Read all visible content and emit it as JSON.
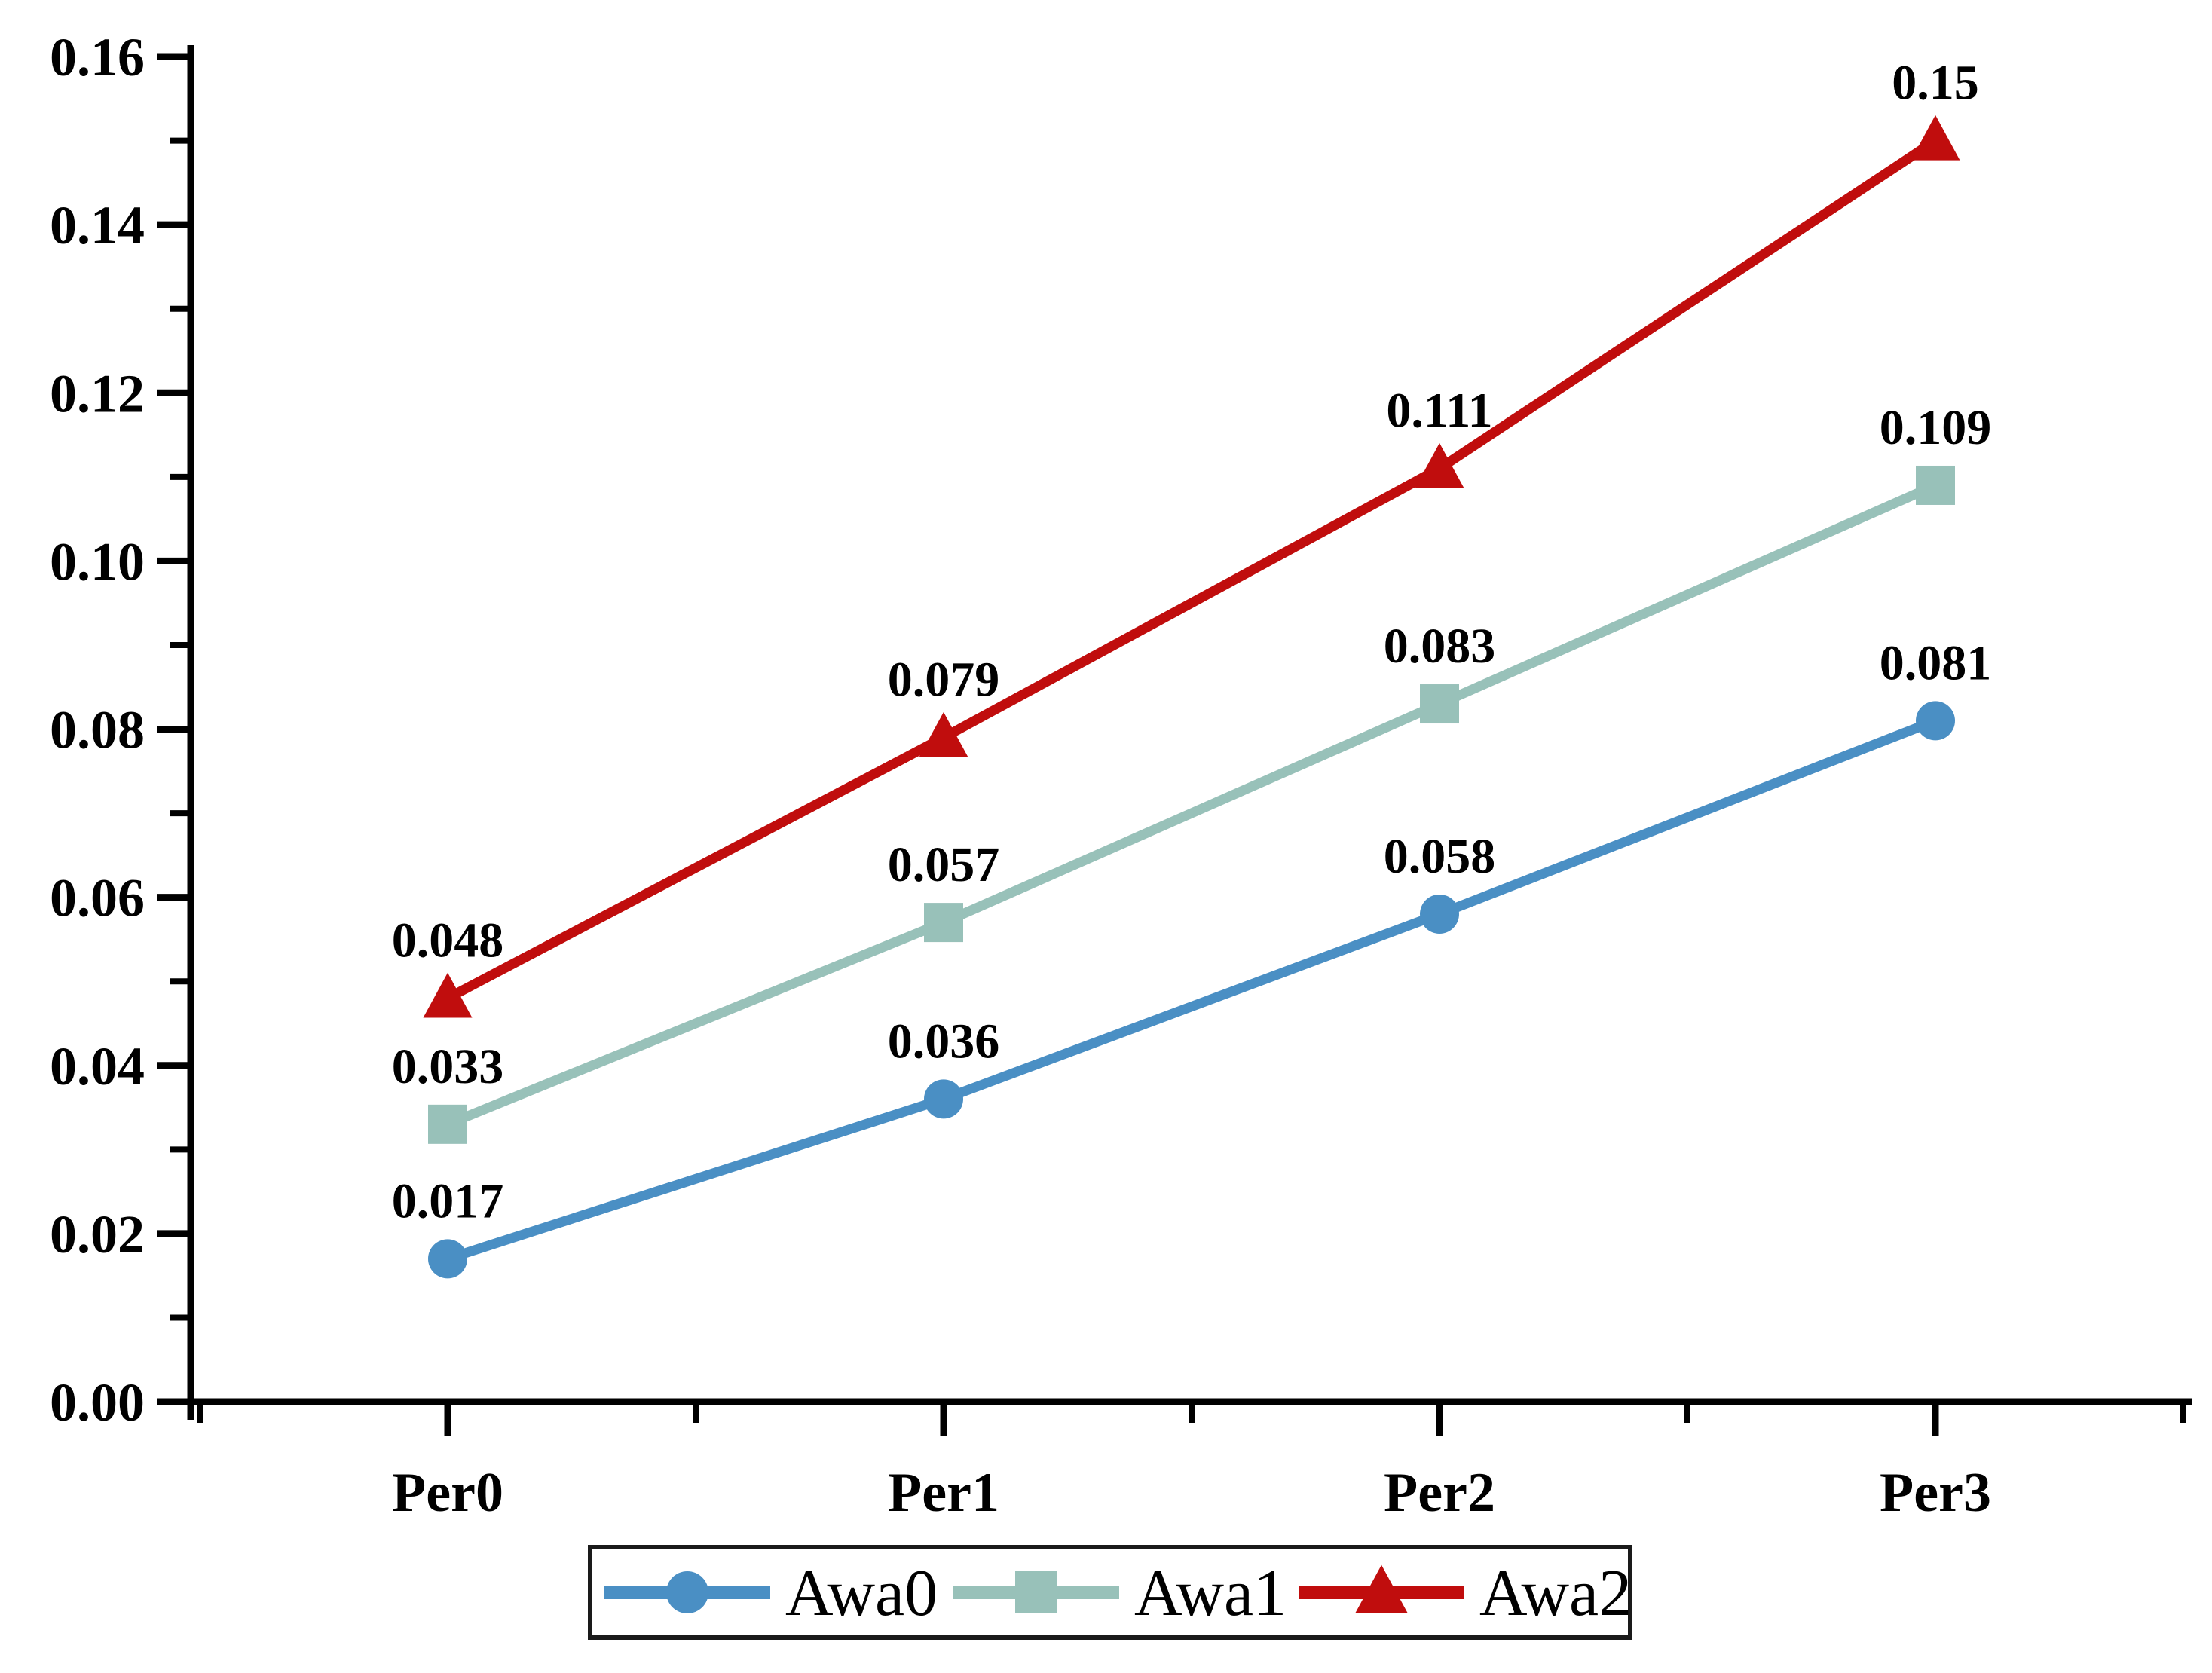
{
  "chart_data": {
    "type": "line",
    "categories": [
      "Per0",
      "Per1",
      "Per2",
      "Per3"
    ],
    "series": [
      {
        "name": "Awa0",
        "marker": "circle",
        "color": "#4a8fc4",
        "values": [
          0.017,
          0.036,
          0.058,
          0.081
        ],
        "point_labels": [
          "0.017",
          "0.036",
          "0.058",
          "0.081"
        ]
      },
      {
        "name": "Awa1",
        "marker": "square",
        "color": "#98c1b9",
        "values": [
          0.033,
          0.057,
          0.083,
          0.109
        ],
        "point_labels": [
          "0.033",
          "0.057",
          "0.083",
          "0.109"
        ]
      },
      {
        "name": "Awa2",
        "marker": "triangle",
        "color": "#c00d0d",
        "values": [
          0.048,
          0.079,
          0.111,
          0.15
        ],
        "point_labels": [
          "0.048",
          "0.079",
          "0.111",
          "0.15"
        ]
      }
    ],
    "title": "",
    "xlabel": "",
    "ylabel": "",
    "ylim": [
      0,
      0.16
    ],
    "y_major_step": 0.02,
    "y_minor_step": 0.01,
    "y_tick_labels": [
      "0.00",
      "0.02",
      "0.04",
      "0.06",
      "0.08",
      "0.10",
      "0.12",
      "0.14",
      "0.16"
    ],
    "grid": false,
    "legend_position": "bottom-center",
    "axis_color": "#000000",
    "text_color": "#000000",
    "legend_border_color": "#1a1a1a",
    "background_color": "#ffffff"
  }
}
